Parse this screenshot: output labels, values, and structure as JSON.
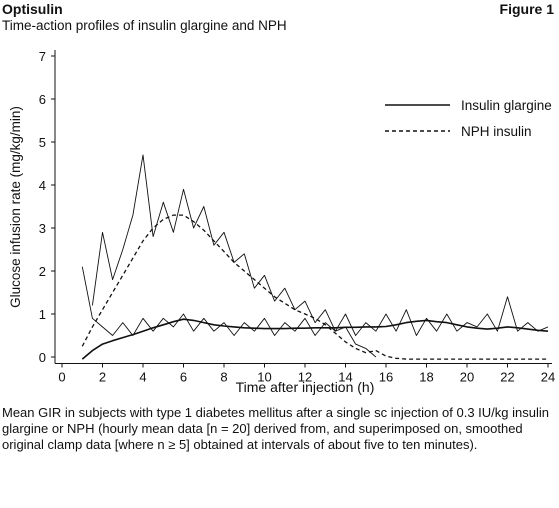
{
  "chart_data": {
    "type": "line",
    "header": "Optisulin",
    "figure_label": "Figure 1",
    "title": "Time-action profiles of insulin glargine and NPH",
    "x_label": "Time after injection (h)",
    "y_label": "Glucose infusion rate (mg/kg/min)",
    "caption": "Mean GIR in subjects with type 1 diabetes mellitus after a single sc injection of 0.3 IU/kg insulin glargine or NPH (hourly mean data [n = 20] derived from, and superimposed on, smoothed original clamp data [where n ≥ 5] obtained at intervals of about five to ten minutes).",
    "x": [
      0.5,
      1,
      1.5,
      2,
      2.5,
      3,
      3.5,
      4,
      4.5,
      5,
      5.5,
      6,
      6.5,
      7,
      7.5,
      8,
      8.5,
      9,
      9.5,
      10,
      10.5,
      11,
      11.5,
      12,
      12.5,
      13,
      13.5,
      14,
      14.5,
      15,
      15.5,
      16,
      16.5,
      17,
      17.5,
      18,
      18.5,
      19,
      19.5,
      20,
      20.5,
      21,
      21.5,
      22,
      22.5,
      23,
      23.5,
      24
    ],
    "xlim": [
      0,
      24
    ],
    "ylim": [
      -0.15,
      7
    ],
    "xticks": [
      0,
      2,
      4,
      6,
      8,
      10,
      12,
      14,
      16,
      18,
      20,
      22,
      24
    ],
    "yticks": [
      0,
      1,
      2,
      3,
      4,
      5,
      6,
      7
    ],
    "legend": "upper right",
    "series": [
      {
        "name": "Insulin glargine",
        "color": "#111111",
        "dash": false,
        "width": 1.6,
        "values": [
          null,
          -0.05,
          0.15,
          0.3,
          0.38,
          0.45,
          0.52,
          0.6,
          0.68,
          0.75,
          0.82,
          0.88,
          0.85,
          0.8,
          0.75,
          0.72,
          0.7,
          0.68,
          0.67,
          0.66,
          0.66,
          0.66,
          0.67,
          0.67,
          0.68,
          0.68,
          0.68,
          0.69,
          0.69,
          0.7,
          0.7,
          0.71,
          0.75,
          0.8,
          0.83,
          0.85,
          0.82,
          0.8,
          0.75,
          0.7,
          0.67,
          0.65,
          0.67,
          0.7,
          0.68,
          0.65,
          0.62,
          0.6
        ]
      },
      {
        "name": "NPH insulin",
        "color": "#111111",
        "dash": true,
        "width": 1.3,
        "values": [
          null,
          0.25,
          0.7,
          1.1,
          1.5,
          1.9,
          2.3,
          2.7,
          3.0,
          3.2,
          3.3,
          3.3,
          3.15,
          2.95,
          2.7,
          2.45,
          2.2,
          2.0,
          1.8,
          1.6,
          1.4,
          1.25,
          1.1,
          1.0,
          0.9,
          0.75,
          0.55,
          0.35,
          0.2,
          0.1,
          0.15,
          0.02,
          -0.03,
          -0.05,
          -0.05,
          -0.05,
          -0.05,
          -0.05,
          -0.05,
          -0.05,
          -0.05,
          -0.05,
          -0.05,
          -0.05,
          -0.05,
          -0.05,
          -0.05,
          -0.05
        ]
      },
      {
        "color": "#111111",
        "dash": false,
        "width": 0.9,
        "values": [
          null,
          2.1,
          0.9,
          0.7,
          0.5,
          0.8,
          0.5,
          0.9,
          0.6,
          0.9,
          0.7,
          1.0,
          0.6,
          0.9,
          0.6,
          0.8,
          0.5,
          0.8,
          0.6,
          0.9,
          0.5,
          0.8,
          0.6,
          0.9,
          0.5,
          0.8,
          0.6,
          1.0,
          0.5,
          0.8,
          0.6,
          1.0,
          0.6,
          1.1,
          0.5,
          0.9,
          0.6,
          1.0,
          0.6,
          0.8,
          0.7,
          1.0,
          0.6,
          1.4,
          0.6,
          0.8,
          0.6,
          0.7
        ]
      },
      {
        "color": "#111111",
        "dash": false,
        "width": 0.9,
        "values": [
          null,
          null,
          1.2,
          2.9,
          1.8,
          2.5,
          3.3,
          4.7,
          2.8,
          3.6,
          2.9,
          3.9,
          3.0,
          3.5,
          2.6,
          2.9,
          2.2,
          2.4,
          1.6,
          1.9,
          1.3,
          1.6,
          1.1,
          1.3,
          0.8,
          1.1,
          0.6,
          0.7,
          0.3,
          0.2,
          0.0,
          null,
          null,
          null,
          null,
          null,
          null,
          null,
          null,
          null,
          null,
          null,
          null,
          null,
          null,
          null,
          null,
          null
        ]
      }
    ]
  }
}
